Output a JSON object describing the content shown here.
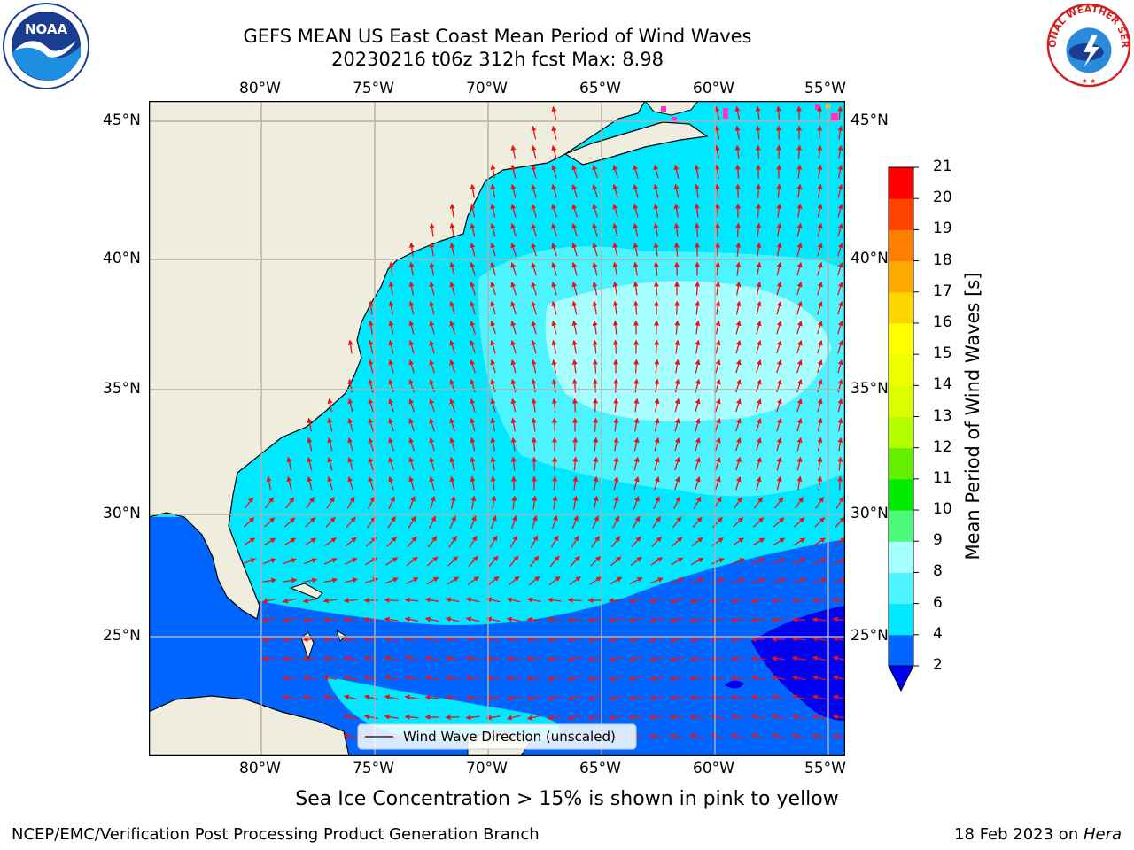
{
  "header": {
    "title_line1": "GEFS MEAN US East Coast Mean Period of Wind Waves",
    "title_line2": "20230216 t06z 312h fcst   Max: 8.98"
  },
  "logos": {
    "left": {
      "name": "noaa-logo",
      "text": "NOAA"
    },
    "right": {
      "name": "nws-logo",
      "text": "NATIONAL WEATHER SERVICE"
    }
  },
  "map": {
    "lon_labels": [
      "80°W",
      "75°W",
      "70°W",
      "65°W",
      "60°W",
      "55°W"
    ],
    "lat_labels": [
      "45°N",
      "40°N",
      "35°N",
      "30°N",
      "25°N"
    ],
    "legend_label": "Wind Wave Direction (unscaled)",
    "arrow_color": "#ee1111",
    "land_color": "#efedde"
  },
  "colorbar": {
    "title": "Mean Period of Wind Waves [s]",
    "ticks": [
      "2",
      "4",
      "6",
      "8",
      "9",
      "10",
      "11",
      "12",
      "13",
      "14",
      "15",
      "16",
      "17",
      "18",
      "19",
      "20",
      "21"
    ],
    "colors": [
      "#0066ff",
      "#00e8ff",
      "#4df4ff",
      "#a7ffff",
      "#4cf97a",
      "#00ea00",
      "#66ee00",
      "#b3ff00",
      "#d9ff00",
      "#eeff00",
      "#ffff00",
      "#ffd500",
      "#ffaa00",
      "#ff8000",
      "#ff4400",
      "#ff0000"
    ],
    "under_color": "#0000f0"
  },
  "notes": {
    "sea_ice": "Sea Ice Concentration > 15% is shown in pink to yellow",
    "credit": "NCEP/EMC/Verification Post Processing Product Generation Branch",
    "date": "18 Feb 2023 on ",
    "machine": "Hera"
  }
}
